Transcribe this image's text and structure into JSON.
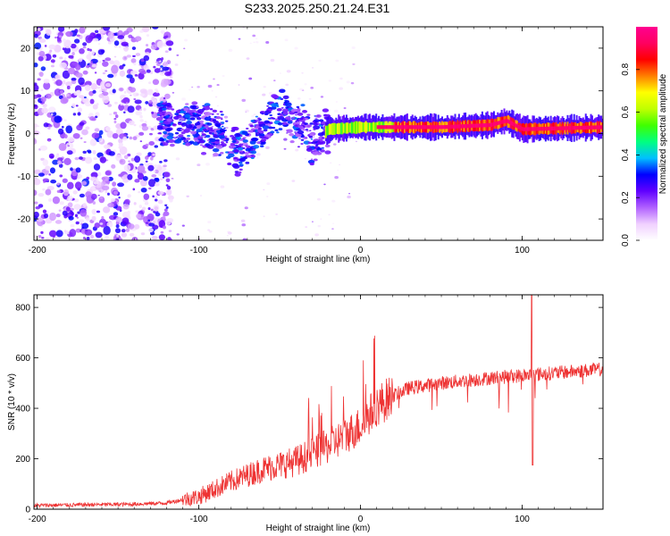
{
  "title": "S233.2025.250.21.24.E31",
  "chart_data": [
    {
      "type": "heatmap",
      "id": "spectrogram",
      "xlabel": "Height of straight line (km)",
      "ylabel": "Frequency (Hz)",
      "xlim": [
        -202,
        150
      ],
      "ylim": [
        -25,
        25
      ],
      "xticks": [
        -200,
        -100,
        0,
        100
      ],
      "yticks": [
        -20,
        -10,
        0,
        10,
        20
      ],
      "colorbar": {
        "label": "Normalized spectral amplitude",
        "ticks": [
          0.0,
          0.2,
          0.4,
          0.6,
          0.8
        ],
        "range": [
          0,
          1
        ],
        "colors": [
          "#ffffff",
          "#f0d0ff",
          "#b060ff",
          "#6000ff",
          "#0000ff",
          "#00c0ff",
          "#00ff80",
          "#40ff00",
          "#c0ff00",
          "#ffff00",
          "#ff8000",
          "#ff0000",
          "#ff0060",
          "#ff0090"
        ]
      },
      "band": {
        "description_points": [
          {
            "x": -125,
            "y": 3
          },
          {
            "x": -105,
            "y": 2
          },
          {
            "x": -85,
            "y": 0
          },
          {
            "x": -75,
            "y": -5
          },
          {
            "x": -60,
            "y": 2
          },
          {
            "x": -50,
            "y": 5
          },
          {
            "x": -40,
            "y": 3
          },
          {
            "x": -30,
            "y": -2
          },
          {
            "x": -20,
            "y": 1
          },
          {
            "x": 0,
            "y": 1.5
          },
          {
            "x": 50,
            "y": 1.5
          },
          {
            "x": 80,
            "y": 2
          },
          {
            "x": 90,
            "y": 3
          },
          {
            "x": 100,
            "y": 1
          },
          {
            "x": 150,
            "y": 1.5
          }
        ]
      }
    },
    {
      "type": "line",
      "id": "snr",
      "xlabel": "Height of straight line (km)",
      "ylabel": "SNR (10 * v/v)",
      "xlim": [
        -202,
        150
      ],
      "ylim": [
        0,
        850
      ],
      "xticks": [
        -200,
        -100,
        0,
        100
      ],
      "yticks": [
        0,
        200,
        400,
        600,
        800
      ],
      "color": "#ee3333",
      "envelope": [
        {
          "x": -202,
          "y": 15
        },
        {
          "x": -140,
          "y": 20
        },
        {
          "x": -120,
          "y": 25
        },
        {
          "x": -100,
          "y": 50
        },
        {
          "x": -80,
          "y": 110
        },
        {
          "x": -60,
          "y": 160
        },
        {
          "x": -40,
          "y": 190
        },
        {
          "x": -20,
          "y": 250
        },
        {
          "x": 0,
          "y": 330
        },
        {
          "x": 10,
          "y": 410
        },
        {
          "x": 20,
          "y": 450
        },
        {
          "x": 30,
          "y": 480
        },
        {
          "x": 50,
          "y": 500
        },
        {
          "x": 80,
          "y": 520
        },
        {
          "x": 100,
          "y": 530
        },
        {
          "x": 130,
          "y": 545
        },
        {
          "x": 150,
          "y": 555
        }
      ],
      "spike": {
        "x": 106,
        "peak": 850,
        "dip": 175
      }
    }
  ]
}
